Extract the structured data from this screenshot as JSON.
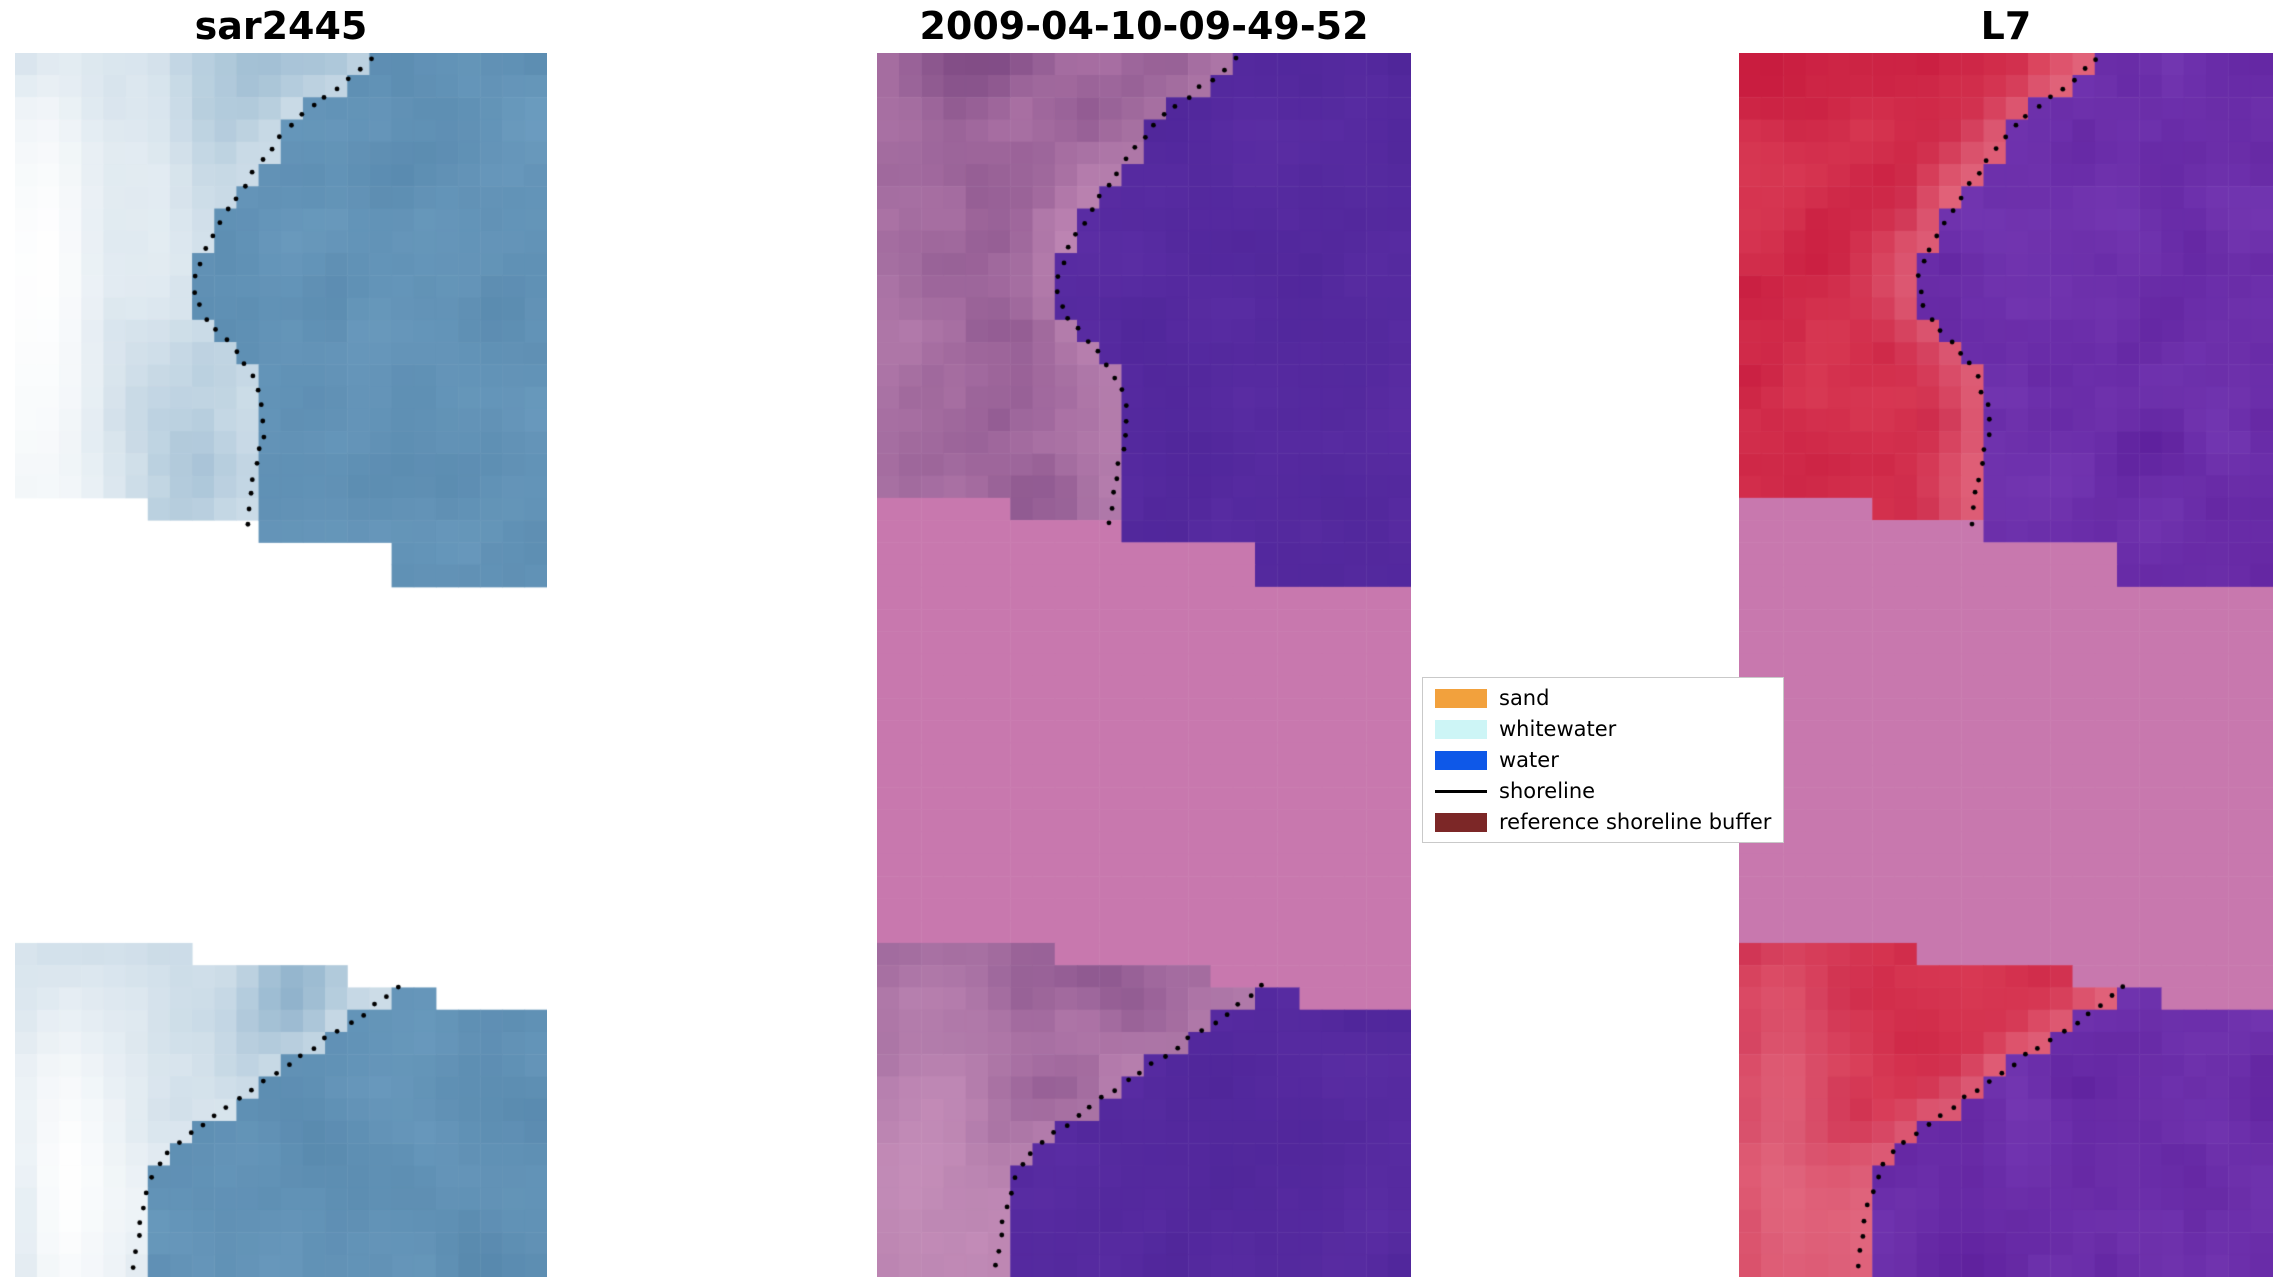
{
  "figure": {
    "background": "#ffffff"
  },
  "chart_data": {
    "type": "satellite-image-comparison",
    "description": "Three coastal satellite image panels (SAR, classified optical, Landsat-7) with detected shoreline dots and reference shoreline buffer band",
    "band_top_steps": [
      {
        "x0": 0.0,
        "x1": 0.26,
        "y": 0.368
      },
      {
        "x0": 0.26,
        "x1": 0.44,
        "y": 0.386
      },
      {
        "x0": 0.44,
        "x1": 0.7,
        "y": 0.404
      },
      {
        "x0": 0.7,
        "x1": 1.01,
        "y": 0.434
      }
    ],
    "band_bottom_steps": [
      {
        "x0": 0.0,
        "x1": 0.35,
        "y": 0.726
      },
      {
        "x0": 0.35,
        "x1": 0.62,
        "y": 0.748
      },
      {
        "x0": 0.62,
        "x1": 0.8,
        "y": 0.76
      },
      {
        "x0": 0.8,
        "x1": 1.01,
        "y": 0.782
      }
    ],
    "shoreline_top": [
      [
        0.67,
        0.005
      ],
      [
        0.625,
        0.022
      ],
      [
        0.575,
        0.038
      ],
      [
        0.52,
        0.058
      ],
      [
        0.46,
        0.09
      ],
      [
        0.405,
        0.125
      ],
      [
        0.36,
        0.158
      ],
      [
        0.335,
        0.185
      ],
      [
        0.35,
        0.212
      ],
      [
        0.4,
        0.237
      ],
      [
        0.445,
        0.262
      ],
      [
        0.465,
        0.288
      ],
      [
        0.468,
        0.312
      ],
      [
        0.452,
        0.338
      ],
      [
        0.442,
        0.365
      ],
      [
        0.433,
        0.392
      ],
      [
        0.428,
        0.42
      ]
    ],
    "shoreline_bottom": [
      [
        0.72,
        0.762
      ],
      [
        0.69,
        0.774
      ],
      [
        0.655,
        0.786
      ],
      [
        0.615,
        0.797
      ],
      [
        0.575,
        0.808
      ],
      [
        0.528,
        0.822
      ],
      [
        0.482,
        0.836
      ],
      [
        0.432,
        0.851
      ],
      [
        0.385,
        0.866
      ],
      [
        0.335,
        0.881
      ],
      [
        0.292,
        0.896
      ],
      [
        0.266,
        0.911
      ],
      [
        0.252,
        0.926
      ],
      [
        0.244,
        0.94
      ],
      [
        0.236,
        0.955
      ],
      [
        0.23,
        0.97
      ],
      [
        0.226,
        0.985
      ],
      [
        0.222,
        1.0
      ]
    ],
    "panels": [
      {
        "title": "sar2445",
        "seed": 7,
        "band_color": null,
        "land_dark": "#7ea6c4",
        "land_light": "#cadce7",
        "water_dark": "#5586ab",
        "water_light": "#6f9fc2",
        "bright": "#ffffff",
        "glow": 0.38,
        "blobs": [
          {
            "x": 0.05,
            "y": 0.17,
            "r": 0.16,
            "i": 1.0
          },
          {
            "x": 0.02,
            "y": 0.33,
            "r": 0.12,
            "i": 0.7
          },
          {
            "x": 0.24,
            "y": 0.03,
            "r": 0.1,
            "i": 0.45
          },
          {
            "x": 0.27,
            "y": 0.17,
            "r": 0.09,
            "i": 0.4
          },
          {
            "x": 0.12,
            "y": 0.44,
            "r": 0.1,
            "i": 0.45
          },
          {
            "x": 0.1,
            "y": 0.925,
            "r": 0.14,
            "i": 1.0
          },
          {
            "x": 0.22,
            "y": 0.86,
            "r": 0.1,
            "i": 0.5
          },
          {
            "x": 0.0,
            "y": 0.83,
            "r": 0.08,
            "i": 0.4
          },
          {
            "x": 0.36,
            "y": 0.79,
            "r": 0.09,
            "i": 0.45
          }
        ]
      },
      {
        "title": "2009-04-10-09-49-52",
        "seed": 13,
        "band_color": "#c878ae",
        "land_dark": "#7e4a84",
        "land_light": "#bd82b2",
        "water_dark": "#4c2497",
        "water_light": "#5f30a8",
        "bright": "#dfa9cd",
        "glow": 0.3,
        "blobs": [
          {
            "x": 0.06,
            "y": 0.97,
            "r": 0.13,
            "i": 0.55
          },
          {
            "x": 0.18,
            "y": 0.9,
            "r": 0.1,
            "i": 0.3
          },
          {
            "x": 0.0,
            "y": 0.2,
            "r": 0.12,
            "i": 0.2
          }
        ]
      },
      {
        "title": "L7",
        "seed": 29,
        "band_color": "#c878ae",
        "land_dark": "#c31238",
        "land_light": "#e1495f",
        "water_dark": "#5a1c99",
        "water_light": "#7d41bb",
        "bright": "#f0a4b6",
        "glow": 0.4,
        "blobs": [
          {
            "x": 0.08,
            "y": 0.93,
            "r": 0.12,
            "i": 0.45
          }
        ]
      }
    ],
    "legend": {
      "items": [
        {
          "label": "sand",
          "type": "patch",
          "color": "#f2a13d"
        },
        {
          "label": "whitewater",
          "type": "patch",
          "color": "#cdf5f6"
        },
        {
          "label": "water",
          "type": "patch",
          "color": "#0e58e8"
        },
        {
          "label": "shoreline",
          "type": "line",
          "color": "#000000"
        },
        {
          "label": "reference shoreline buffer",
          "type": "patch",
          "color": "#7c2727"
        }
      ]
    }
  }
}
